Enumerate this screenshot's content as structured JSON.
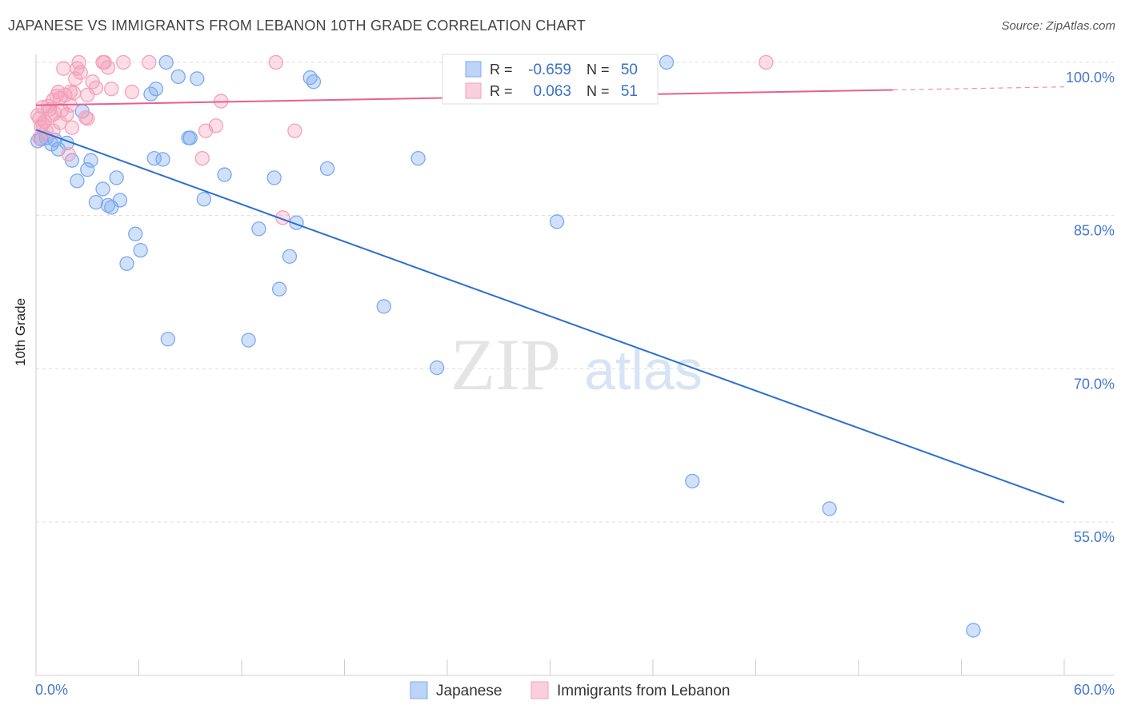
{
  "chart_data": {
    "type": "scatter",
    "title": "JAPANESE VS IMMIGRANTS FROM LEBANON 10TH GRADE CORRELATION CHART",
    "source": "Source: ZipAtlas.com",
    "ylabel": "10th Grade",
    "xlim": [
      0,
      60
    ],
    "ylim": [
      42,
      101
    ],
    "x_tick_labels": [
      "0.0%",
      "60.0%"
    ],
    "y_ticks": [
      100,
      85,
      70,
      55
    ],
    "y_tick_labels": [
      "100.0%",
      "85.0%",
      "70.0%",
      "55.0%"
    ],
    "watermark": {
      "zip": "ZIP",
      "atlas": "atlas"
    },
    "series": [
      {
        "name": "Japanese",
        "color": "#7aaaf0",
        "line_color": "#2a6fd3",
        "R": "-0.659",
        "N": "50",
        "trend": {
          "x0": 0,
          "y0": 93.4,
          "x1": 60,
          "y1": 56.9
        },
        "points": [
          [
            0.3,
            92.5
          ],
          [
            0.6,
            92.6
          ],
          [
            0.9,
            92.0
          ],
          [
            1.1,
            92.4
          ],
          [
            1.3,
            91.5
          ],
          [
            1.8,
            92.1
          ],
          [
            2.1,
            90.4
          ],
          [
            2.4,
            88.4
          ],
          [
            2.7,
            95.2
          ],
          [
            3.0,
            89.5
          ],
          [
            3.2,
            90.4
          ],
          [
            3.5,
            86.3
          ],
          [
            3.9,
            87.6
          ],
          [
            4.2,
            86.0
          ],
          [
            4.4,
            85.8
          ],
          [
            4.7,
            88.7
          ],
          [
            4.9,
            86.5
          ],
          [
            5.3,
            80.3
          ],
          [
            5.8,
            83.2
          ],
          [
            6.1,
            81.6
          ],
          [
            6.7,
            96.9
          ],
          [
            6.9,
            90.6
          ],
          [
            7.0,
            97.4
          ],
          [
            7.4,
            90.5
          ],
          [
            7.6,
            100.0
          ],
          [
            7.7,
            72.9
          ],
          [
            8.3,
            98.6
          ],
          [
            8.9,
            92.6
          ],
          [
            9.0,
            92.6
          ],
          [
            9.4,
            98.4
          ],
          [
            9.8,
            86.6
          ],
          [
            11.0,
            89.0
          ],
          [
            12.4,
            72.8
          ],
          [
            13.0,
            83.7
          ],
          [
            13.9,
            88.7
          ],
          [
            14.2,
            77.8
          ],
          [
            14.8,
            81.0
          ],
          [
            15.2,
            84.3
          ],
          [
            16.0,
            98.5
          ],
          [
            16.2,
            98.1
          ],
          [
            17.0,
            89.6
          ],
          [
            20.3,
            76.1
          ],
          [
            22.3,
            90.6
          ],
          [
            23.4,
            70.1
          ],
          [
            30.4,
            84.4
          ],
          [
            36.8,
            100.0
          ],
          [
            38.3,
            59.0
          ],
          [
            46.3,
            56.3
          ],
          [
            54.7,
            44.4
          ],
          [
            0.1,
            92.3
          ]
        ]
      },
      {
        "name": "Immigrants from Lebanon",
        "color": "#f4a0bb",
        "line_color": "#e8608a",
        "R": "0.063",
        "N": "51",
        "trend": {
          "x0": 0,
          "y0": 95.8,
          "x1": 50,
          "y1": 97.3
        },
        "trend_dashed": {
          "x0": 50,
          "y0": 97.3,
          "x1": 60,
          "y1": 97.6
        },
        "points": [
          [
            0.2,
            94.5
          ],
          [
            0.3,
            93.7
          ],
          [
            0.4,
            95.6
          ],
          [
            0.5,
            94.2
          ],
          [
            0.6,
            93.3
          ],
          [
            0.8,
            95.4
          ],
          [
            0.9,
            94.8
          ],
          [
            1.0,
            96.3
          ],
          [
            1.1,
            95.0
          ],
          [
            1.2,
            96.7
          ],
          [
            1.3,
            97.1
          ],
          [
            1.4,
            94.1
          ],
          [
            1.5,
            95.3
          ],
          [
            1.6,
            99.4
          ],
          [
            1.7,
            96.8
          ],
          [
            1.8,
            94.9
          ],
          [
            1.9,
            91.0
          ],
          [
            2.0,
            97.1
          ],
          [
            2.1,
            93.6
          ],
          [
            2.2,
            97.0
          ],
          [
            2.3,
            98.4
          ],
          [
            2.4,
            99.4
          ],
          [
            2.5,
            100.0
          ],
          [
            2.6,
            99.0
          ],
          [
            2.9,
            94.6
          ],
          [
            3.0,
            94.5
          ],
          [
            3.3,
            98.1
          ],
          [
            3.5,
            97.5
          ],
          [
            3.9,
            100.0
          ],
          [
            4.0,
            100.0
          ],
          [
            4.2,
            99.5
          ],
          [
            4.4,
            97.4
          ],
          [
            5.1,
            100.0
          ],
          [
            5.6,
            97.1
          ],
          [
            6.6,
            100.0
          ],
          [
            9.7,
            90.6
          ],
          [
            9.9,
            93.3
          ],
          [
            10.5,
            93.8
          ],
          [
            10.8,
            96.2
          ],
          [
            14.0,
            100.0
          ],
          [
            14.4,
            84.8
          ],
          [
            15.1,
            93.3
          ],
          [
            42.6,
            100.0
          ],
          [
            0.1,
            94.8
          ],
          [
            0.2,
            92.6
          ],
          [
            0.7,
            95.7
          ],
          [
            1.0,
            93.3
          ],
          [
            1.4,
            96.5
          ],
          [
            2.0,
            95.8
          ],
          [
            0.4,
            94.0
          ],
          [
            3.0,
            96.8
          ]
        ]
      }
    ]
  }
}
